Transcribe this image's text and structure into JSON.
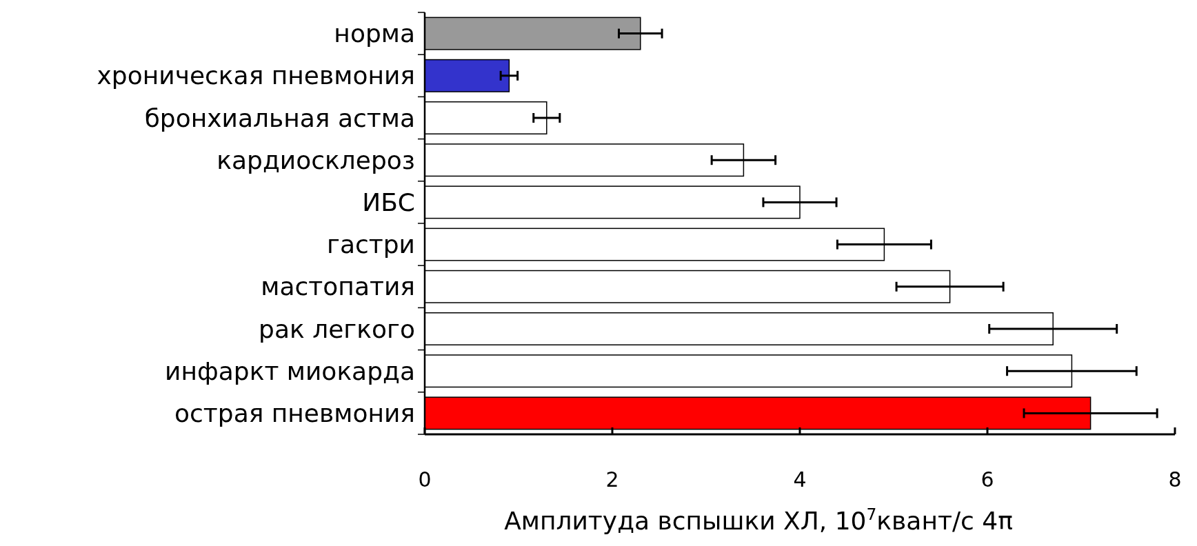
{
  "chart_data": {
    "type": "bar",
    "orientation": "horizontal",
    "categories": [
      "норма",
      "хроническая пневмония",
      "бронхиальная астма",
      "кардиосклероз",
      "ИБС",
      "гастри",
      "мастопатия",
      "рак легкого",
      "инфаркт миокарда",
      "острая пневмония"
    ],
    "values": [
      2.3,
      0.9,
      1.3,
      3.4,
      4.0,
      4.9,
      5.6,
      6.7,
      6.9,
      7.1
    ],
    "errors": [
      0.23,
      0.09,
      0.14,
      0.34,
      0.39,
      0.5,
      0.57,
      0.68,
      0.69,
      0.71
    ],
    "colors": [
      "#999999",
      "#3333cc",
      "#ffffff",
      "#ffffff",
      "#ffffff",
      "#ffffff",
      "#ffffff",
      "#ffffff",
      "#ffffff",
      "#ff0000"
    ],
    "xlabel": "Амплитуда вспышки ХЛ, 10$^{7}$квант/с 4π",
    "xlim": [
      0,
      8
    ],
    "xticks": [
      0,
      2,
      4,
      6,
      8
    ],
    "grid": false
  }
}
